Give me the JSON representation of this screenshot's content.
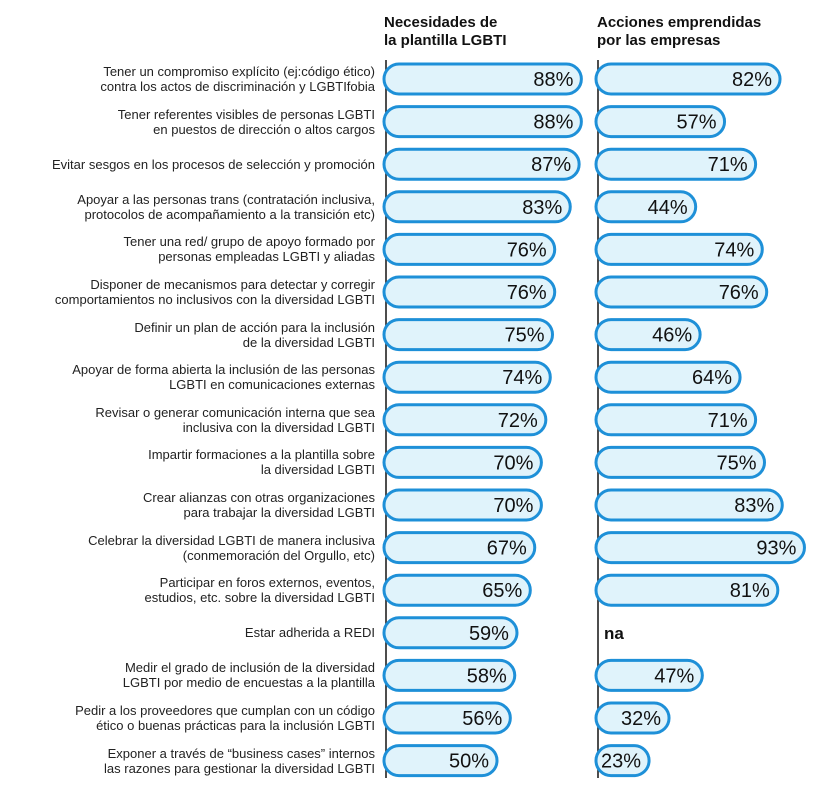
{
  "chart_data": {
    "type": "bar",
    "orientation": "horizontal",
    "xlim": [
      0,
      100
    ],
    "series": [
      {
        "name_lines": [
          "Necesidades de",
          "la plantilla LGBTI"
        ],
        "values": [
          88,
          88,
          87,
          83,
          76,
          76,
          75,
          74,
          72,
          70,
          70,
          67,
          65,
          59,
          58,
          56,
          50
        ],
        "labels": [
          "88%",
          "88%",
          "87%",
          "83%",
          "76%",
          "76%",
          "75%",
          "74%",
          "72%",
          "70%",
          "70%",
          "67%",
          "65%",
          "59%",
          "58%",
          "56%",
          "50%"
        ]
      },
      {
        "name_lines": [
          "Acciones emprendidas",
          "por las empresas"
        ],
        "values": [
          82,
          57,
          71,
          44,
          74,
          76,
          46,
          64,
          71,
          75,
          83,
          93,
          81,
          null,
          47,
          32,
          23
        ],
        "labels": [
          "82%",
          "57%",
          "71%",
          "44%",
          "74%",
          "76%",
          "46%",
          "64%",
          "71%",
          "75%",
          "83%",
          "93%",
          "81%",
          "na",
          "47%",
          "32%",
          "23%"
        ]
      }
    ],
    "categories": [
      [
        "Tener un compromiso explícito (ej:código ético)",
        "contra los actos de discriminación y LGBTIfobia"
      ],
      [
        "Tener referentes visibles de personas LGBTI",
        "en puestos de dirección o altos cargos"
      ],
      [
        "Evitar sesgos en los procesos de selección y promoción"
      ],
      [
        "Apoyar a las personas trans (contratación inclusiva,",
        "protocolos de acompañamiento a la transición etc)"
      ],
      [
        "Tener una red/ grupo de apoyo formado por",
        "personas empleadas LGBTI y aliadas"
      ],
      [
        "Disponer de mecanismos para detectar y corregir",
        "comportamientos no inclusivos con la diversidad LGBTI"
      ],
      [
        "Definir un plan de acción para la inclusión",
        "de la diversidad LGBTI"
      ],
      [
        "Apoyar de forma abierta la inclusión de las personas",
        "LGBTI en comunicaciones externas"
      ],
      [
        "Revisar o generar comunicación interna que sea",
        "inclusiva con la diversidad LGBTI"
      ],
      [
        "Impartir formaciones a la plantilla sobre",
        "la diversidad LGBTI"
      ],
      [
        "Crear alianzas con otras organizaciones",
        "para trabajar la diversidad LGBTI"
      ],
      [
        "Celebrar la diversidad LGBTI de manera inclusiva",
        "(conmemoración del Orgullo, etc)"
      ],
      [
        "Participar en foros externos, eventos,",
        "estudios, etc. sobre la diversidad LGBTI"
      ],
      [
        "Estar adherida a REDI"
      ],
      [
        "Medir el grado de inclusión de la diversidad",
        "LGBTI por medio de encuestas a la plantilla"
      ],
      [
        "Pedir a los proveedores que cumplan con un código",
        "ético o buenas prácticas para la inclusión LGBTI"
      ],
      [
        "Exponer a través de “business cases” internos",
        "las razones para gestionar la diversidad LGBTI"
      ]
    ],
    "colors": {
      "bar_fill": "#e0f3fb",
      "bar_stroke": "#1e90d8",
      "axis": "#222222",
      "text": "#111111"
    }
  }
}
